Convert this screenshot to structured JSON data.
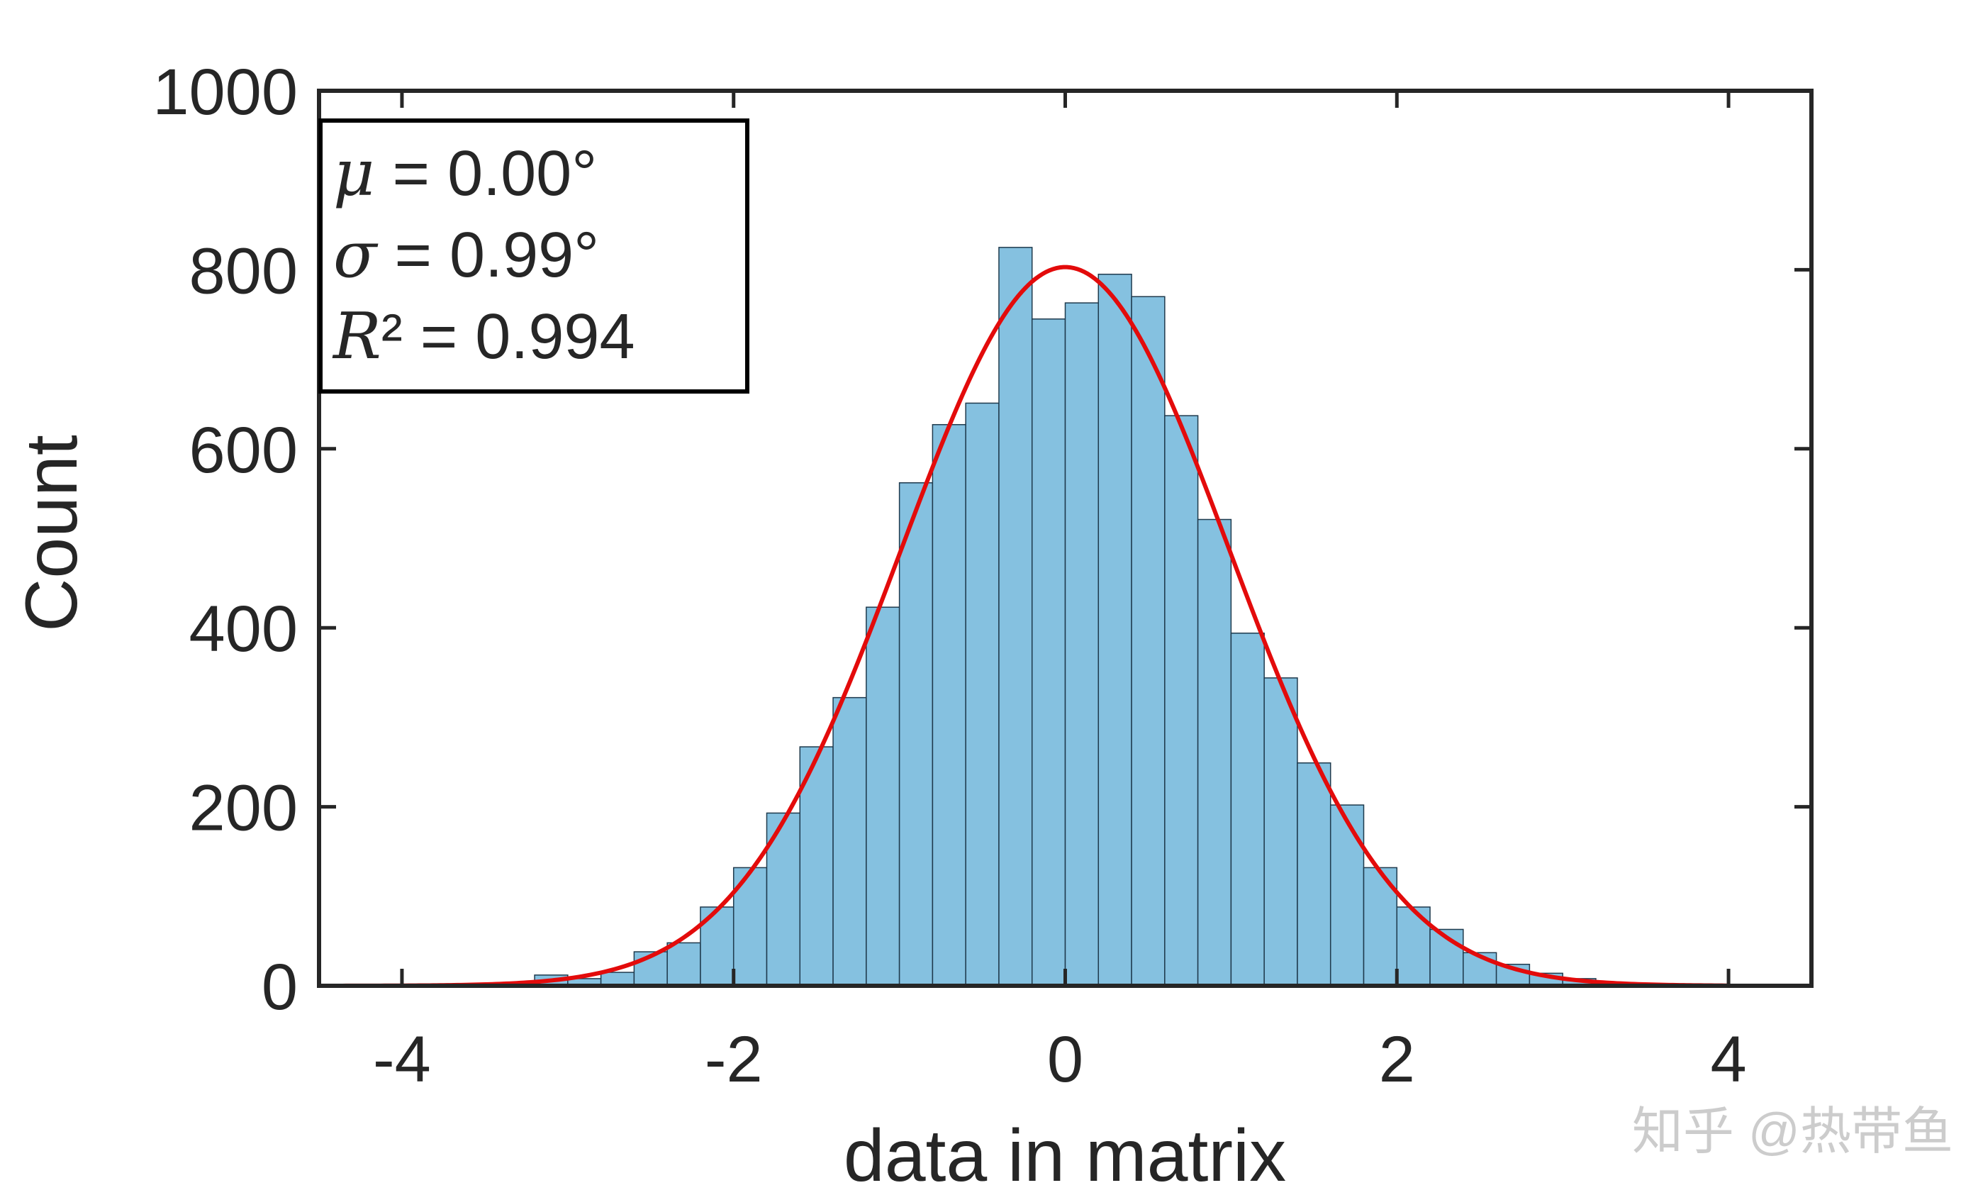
{
  "chart_data": {
    "type": "bar",
    "subtype": "histogram-with-fit",
    "xlabel": "data in matrix",
    "ylabel": "Count",
    "xlim": [
      -4.5,
      4.5
    ],
    "ylim": [
      0,
      1000
    ],
    "xticks": [
      -4,
      -2,
      0,
      2,
      4
    ],
    "yticks": [
      0,
      200,
      400,
      600,
      800,
      1000
    ],
    "bin_width": 0.2,
    "bins": [
      {
        "x0": -3.2,
        "count": 12
      },
      {
        "x0": -3.0,
        "count": 8
      },
      {
        "x0": -2.8,
        "count": 15
      },
      {
        "x0": -2.6,
        "count": 38
      },
      {
        "x0": -2.4,
        "count": 48
      },
      {
        "x0": -2.2,
        "count": 88
      },
      {
        "x0": -2.0,
        "count": 132
      },
      {
        "x0": -1.8,
        "count": 193
      },
      {
        "x0": -1.6,
        "count": 267
      },
      {
        "x0": -1.4,
        "count": 322
      },
      {
        "x0": -1.2,
        "count": 423
      },
      {
        "x0": -1.0,
        "count": 562
      },
      {
        "x0": -0.8,
        "count": 627
      },
      {
        "x0": -0.6,
        "count": 651
      },
      {
        "x0": -0.4,
        "count": 825
      },
      {
        "x0": -0.2,
        "count": 745
      },
      {
        "x0": 0.0,
        "count": 763
      },
      {
        "x0": 0.2,
        "count": 795
      },
      {
        "x0": 0.4,
        "count": 770
      },
      {
        "x0": 0.6,
        "count": 637
      },
      {
        "x0": 0.8,
        "count": 521
      },
      {
        "x0": 1.0,
        "count": 394
      },
      {
        "x0": 1.2,
        "count": 344
      },
      {
        "x0": 1.4,
        "count": 249
      },
      {
        "x0": 1.6,
        "count": 202
      },
      {
        "x0": 1.8,
        "count": 132
      },
      {
        "x0": 2.0,
        "count": 88
      },
      {
        "x0": 2.2,
        "count": 63
      },
      {
        "x0": 2.4,
        "count": 37
      },
      {
        "x0": 2.6,
        "count": 24
      },
      {
        "x0": 2.8,
        "count": 14
      },
      {
        "x0": 3.0,
        "count": 8
      }
    ],
    "fit": {
      "type": "gaussian",
      "mu": 0.0,
      "sigma": 0.99,
      "peak": 803,
      "x_range": [
        -4.4,
        4.0
      ]
    },
    "annotation": {
      "lines": [
        {
          "symbol": "μ",
          "text": " = 0.00°"
        },
        {
          "symbol": "σ",
          "text": " = 0.99°"
        },
        {
          "symbol": "R",
          "text": "² = 0.994"
        }
      ]
    },
    "colors": {
      "bar_fill": "#85C1E0",
      "bar_edge": "#1F3A4D",
      "fit_line": "#E30B0B",
      "axis": "#262626"
    },
    "grid": false
  },
  "watermark": "知乎 @热带鱼"
}
